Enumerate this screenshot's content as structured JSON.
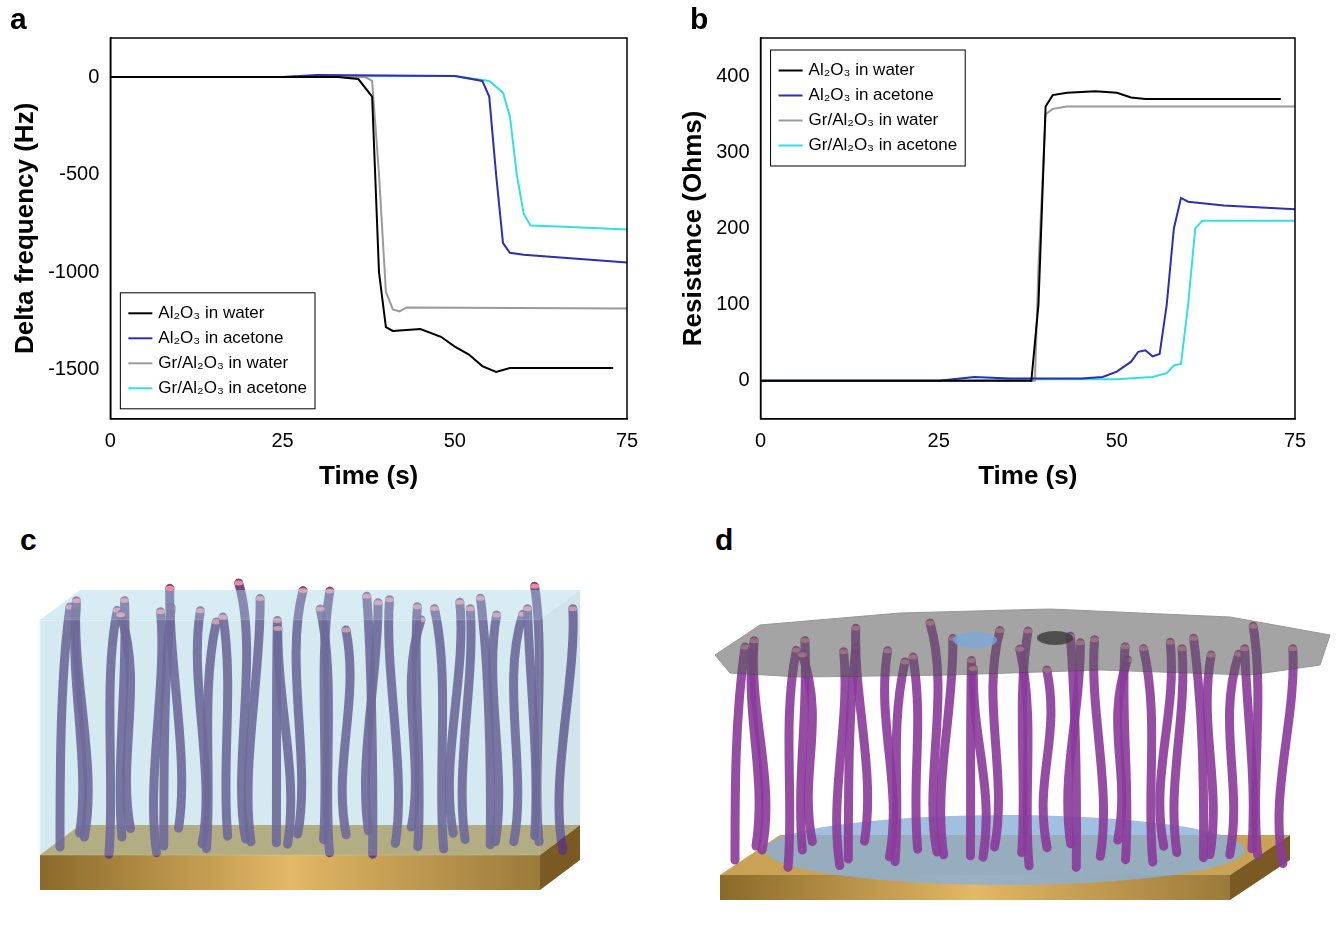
{
  "chart_data": [
    {
      "type": "line",
      "title": "a",
      "x_label": "Time (s)",
      "y_label": "Delta frequency (Hz)",
      "xlim": [
        0,
        75
      ],
      "xticks": [
        0,
        25,
        50,
        75
      ],
      "ylim": [
        -1750,
        200
      ],
      "yticks": [
        -1500,
        -1000,
        -500,
        0
      ],
      "grid": false,
      "legend": "lower left",
      "series": [
        {
          "name": "Al₂O₃ in water",
          "color": "#000000",
          "x": [
            0,
            25,
            33,
            36,
            38,
            39,
            40,
            41,
            45,
            48,
            50,
            52,
            54,
            56,
            58,
            73
          ],
          "values": [
            0,
            0,
            0,
            -10,
            -100,
            -1000,
            -1280,
            -1300,
            -1290,
            -1330,
            -1380,
            -1420,
            -1480,
            -1510,
            -1490,
            -1490
          ]
        },
        {
          "name": "Al₂O₃ in acetone",
          "color": "#2b2fb5",
          "x": [
            0,
            25,
            30,
            50,
            54,
            55,
            56,
            57,
            58,
            60,
            75
          ],
          "values": [
            0,
            0,
            10,
            5,
            -20,
            -100,
            -500,
            -850,
            -900,
            -910,
            -950
          ]
        },
        {
          "name": "Gr/Al₂O₃ in water",
          "color": "#9a9a9a",
          "x": [
            0,
            25,
            37,
            38,
            39,
            40,
            41,
            42,
            43,
            75
          ],
          "values": [
            0,
            0,
            0,
            -20,
            -500,
            -1100,
            -1190,
            -1200,
            -1180,
            -1185
          ]
        },
        {
          "name": "Gr/Al₂O₃ in acetone",
          "color": "#33e0e0",
          "x": [
            0,
            25,
            30,
            50,
            55,
            57,
            58,
            59,
            60,
            61,
            65,
            75
          ],
          "values": [
            0,
            0,
            5,
            5,
            -20,
            -80,
            -200,
            -500,
            -700,
            -760,
            -765,
            -780
          ]
        }
      ]
    },
    {
      "type": "line",
      "title": "b",
      "x_label": "Time (s)",
      "y_label": "Resistance (Ohms)",
      "xlim": [
        0,
        75
      ],
      "xticks": [
        0,
        25,
        50,
        75
      ],
      "ylim": [
        -50,
        450
      ],
      "yticks": [
        0,
        100,
        200,
        300,
        400
      ],
      "grid": false,
      "legend": "upper left",
      "series": [
        {
          "name": "Al₂O₃ in water",
          "color": "#000000",
          "x": [
            0,
            38,
            39,
            40,
            41,
            43,
            47,
            50,
            52,
            54,
            73
          ],
          "values": [
            0,
            0,
            100,
            360,
            375,
            378,
            380,
            378,
            372,
            370,
            370
          ]
        },
        {
          "name": "Al₂O₃ in acetone",
          "color": "#2b2fb5",
          "x": [
            0,
            25,
            28,
            30,
            35,
            45,
            48,
            50,
            52,
            53,
            54,
            55,
            56,
            57,
            58,
            59,
            60,
            65,
            75
          ],
          "values": [
            0,
            0,
            3,
            5,
            3,
            3,
            5,
            12,
            25,
            38,
            40,
            32,
            35,
            100,
            200,
            240,
            235,
            230,
            225
          ]
        },
        {
          "name": "Gr/Al₂O₃ in water",
          "color": "#9a9a9a",
          "x": [
            0,
            38.5,
            39,
            40,
            41,
            43,
            75
          ],
          "values": [
            0,
            0,
            150,
            350,
            357,
            360,
            360
          ]
        },
        {
          "name": "Gr/Al₂O₃ in acetone",
          "color": "#33e0e0",
          "x": [
            0,
            25,
            40,
            50,
            55,
            57,
            58,
            59,
            60,
            61,
            62,
            75
          ],
          "values": [
            0,
            0,
            2,
            2,
            5,
            10,
            20,
            22,
            100,
            200,
            210,
            210
          ]
        }
      ]
    }
  ],
  "illustrations": [
    {
      "label": "c"
    },
    {
      "label": "d"
    }
  ]
}
